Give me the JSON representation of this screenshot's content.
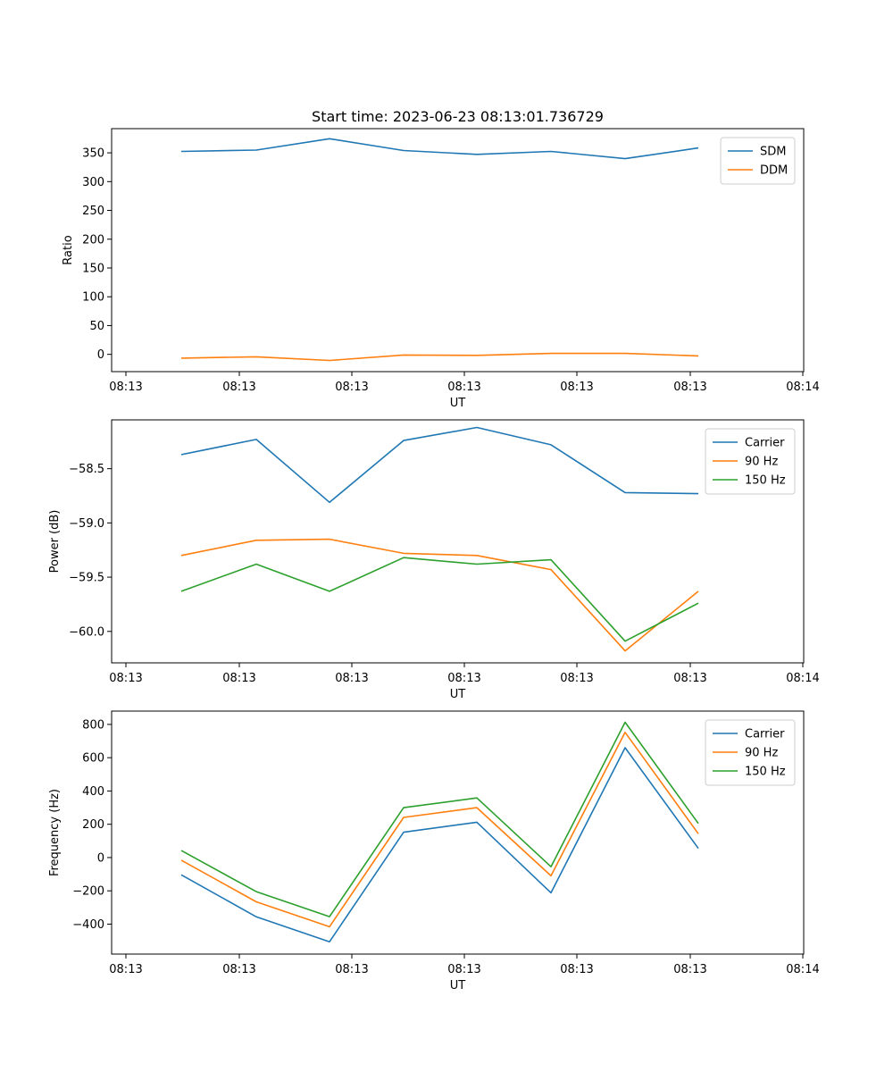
{
  "title": "Start time: 2023-06-23 08:13:01.736729",
  "chart_data": [
    {
      "type": "line",
      "title": "Start time: 2023-06-23 08:13:01.736729",
      "xlabel": "UT",
      "ylabel": "Ratio",
      "x_tick_labels": [
        "08:13",
        "08:13",
        "08:13",
        "08:13",
        "08:13",
        "08:13",
        "08:14"
      ],
      "y_ticks": [
        0,
        50,
        100,
        150,
        200,
        250,
        300,
        350
      ],
      "y_tick_labels": [
        "0",
        "50",
        "100",
        "150",
        "200",
        "250",
        "300",
        "350"
      ],
      "ylim": [
        -30,
        392
      ],
      "grid": false,
      "legend_position": "top-right",
      "series": [
        {
          "name": "SDM",
          "color": "#1f77b4",
          "values": [
            352.5,
            354.7,
            374.5,
            354.0,
            347.3,
            352.4,
            339.9,
            358.5
          ]
        },
        {
          "name": "DDM",
          "color": "#ff7f0e",
          "values": [
            -6.5,
            -4.3,
            -10.6,
            -1.1,
            -1.8,
            1.7,
            1.7,
            -2.7
          ]
        }
      ]
    },
    {
      "type": "line",
      "xlabel": "UT",
      "ylabel": "Power (dB)",
      "x_tick_labels": [
        "08:13",
        "08:13",
        "08:13",
        "08:13",
        "08:13",
        "08:13",
        "08:14"
      ],
      "y_ticks": [
        -58.5,
        -59.0,
        -59.5,
        -60.0
      ],
      "y_tick_labels": [
        "−58.5",
        "−59.0",
        "−59.5",
        "−60.0"
      ],
      "ylim": [
        -60.29,
        -58.05
      ],
      "grid": false,
      "legend_position": "top-right",
      "series": [
        {
          "name": "Carrier",
          "color": "#1f77b4",
          "values": [
            -58.37,
            -58.23,
            -58.81,
            -58.24,
            -58.12,
            -58.28,
            -58.72,
            -58.73
          ]
        },
        {
          "name": "90 Hz",
          "color": "#ff7f0e",
          "values": [
            -59.3,
            -59.16,
            -59.15,
            -59.28,
            -59.3,
            -59.43,
            -60.18,
            -59.63
          ]
        },
        {
          "name": "150 Hz",
          "color": "#2ca02c",
          "values": [
            -59.63,
            -59.38,
            -59.63,
            -59.32,
            -59.38,
            -59.34,
            -60.09,
            -59.74
          ]
        }
      ]
    },
    {
      "type": "line",
      "xlabel": "UT",
      "ylabel": "Frequency (Hz)",
      "x_tick_labels": [
        "08:13",
        "08:13",
        "08:13",
        "08:13",
        "08:13",
        "08:13",
        "08:14"
      ],
      "y_ticks": [
        -400,
        -200,
        0,
        200,
        400,
        600,
        800
      ],
      "y_tick_labels": [
        "−400",
        "−200",
        "0",
        "200",
        "400",
        "600",
        "800"
      ],
      "ylim": [
        -580,
        880
      ],
      "grid": false,
      "legend_position": "top-right",
      "series": [
        {
          "name": "Carrier",
          "color": "#1f77b4",
          "values": [
            -104,
            -356,
            -506,
            152,
            212,
            -212,
            660,
            55
          ]
        },
        {
          "name": "90 Hz",
          "color": "#ff7f0e",
          "values": [
            -16,
            -266,
            -416,
            241,
            300,
            -110,
            752,
            143
          ]
        },
        {
          "name": "150 Hz",
          "color": "#2ca02c",
          "values": [
            42,
            -205,
            -355,
            300,
            358,
            -55,
            813,
            205
          ]
        }
      ]
    }
  ]
}
